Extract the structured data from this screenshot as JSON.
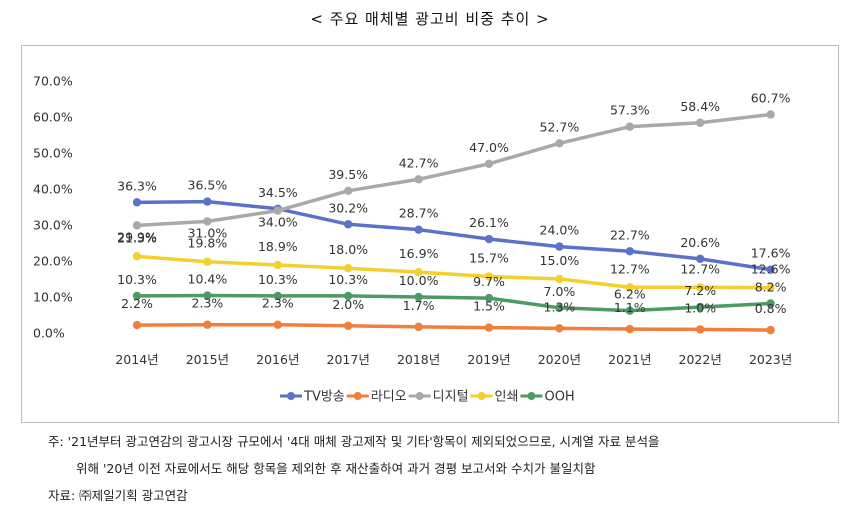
{
  "title": "< 주요 매체별 광고비 비중 추이 >",
  "notes": {
    "line1": "주: '21년부터 광고연감의 광고시장 규모에서 '4대 매체 광고제작 및 기타'항목이 제외되었으므로, 시계열 자료 분석을",
    "line2": "위해 '20년 이전 자료에서도 해당 항목을 제외한 후 재산출하여 과거 경평 보고서와 수치가 불일치함",
    "line3": "자료: ㈜제일기획 광고연감"
  },
  "chart_data": {
    "type": "line",
    "title": "< 주요 매체별 광고비 비중 추이 >",
    "categories": [
      "2014년",
      "2015년",
      "2016년",
      "2017년",
      "2018년",
      "2019년",
      "2020년",
      "2021년",
      "2022년",
      "2023년"
    ],
    "y_ticks": [
      "0.0%",
      "10.0%",
      "20.0%",
      "30.0%",
      "40.0%",
      "50.0%",
      "60.0%",
      "70.0%"
    ],
    "ylim": [
      0,
      70
    ],
    "grid": false,
    "legend_position": "bottom",
    "series": [
      {
        "name": "TV방송",
        "color": "#5b72c9",
        "values": [
          36.3,
          36.5,
          34.5,
          30.2,
          28.7,
          26.1,
          24.0,
          22.7,
          20.6,
          17.6
        ],
        "labels": [
          "36.3%",
          "36.5%",
          "34.5%",
          "30.2%",
          "28.7%",
          "26.1%",
          "24.0%",
          "22.7%",
          "20.6%",
          "17.6%"
        ]
      },
      {
        "name": "라디오",
        "color": "#ef7f3a",
        "values": [
          2.2,
          2.3,
          2.3,
          2.0,
          1.7,
          1.5,
          1.3,
          1.1,
          1.0,
          0.8
        ],
        "labels": [
          "2.2%",
          "2.3%",
          "2.3%",
          "2.0%",
          "1.7%",
          "1.5%",
          "1.3%",
          "1.1%",
          "1.0%",
          "0.8%"
        ]
      },
      {
        "name": "디지털",
        "color": "#a9a9a9",
        "values": [
          29.9,
          31.0,
          34.0,
          39.5,
          42.7,
          47.0,
          52.7,
          57.3,
          58.4,
          60.7
        ],
        "labels": [
          "29.9%",
          "31.0%",
          "34.0%",
          "39.5%",
          "42.7%",
          "47.0%",
          "52.7%",
          "57.3%",
          "58.4%",
          "60.7%"
        ]
      },
      {
        "name": "인쇄",
        "color": "#f5cf2e",
        "values": [
          21.3,
          19.8,
          18.9,
          18.0,
          16.9,
          15.7,
          15.0,
          12.7,
          12.7,
          12.6
        ],
        "labels": [
          "21.3%",
          "19.8%",
          "18.9%",
          "18.0%",
          "16.9%",
          "15.7%",
          "15.0%",
          "12.7%",
          "12.7%",
          "12.6%"
        ]
      },
      {
        "name": "OOH",
        "color": "#4e9a63",
        "values": [
          10.3,
          10.4,
          10.3,
          10.3,
          10.0,
          9.7,
          7.0,
          6.2,
          7.2,
          8.2
        ],
        "labels": [
          "10.3%",
          "10.4%",
          "10.3%",
          "10.3%",
          "10.0%",
          "9.7%",
          "7.0%",
          "6.2%",
          "7.2%",
          "8.2%"
        ]
      }
    ]
  }
}
